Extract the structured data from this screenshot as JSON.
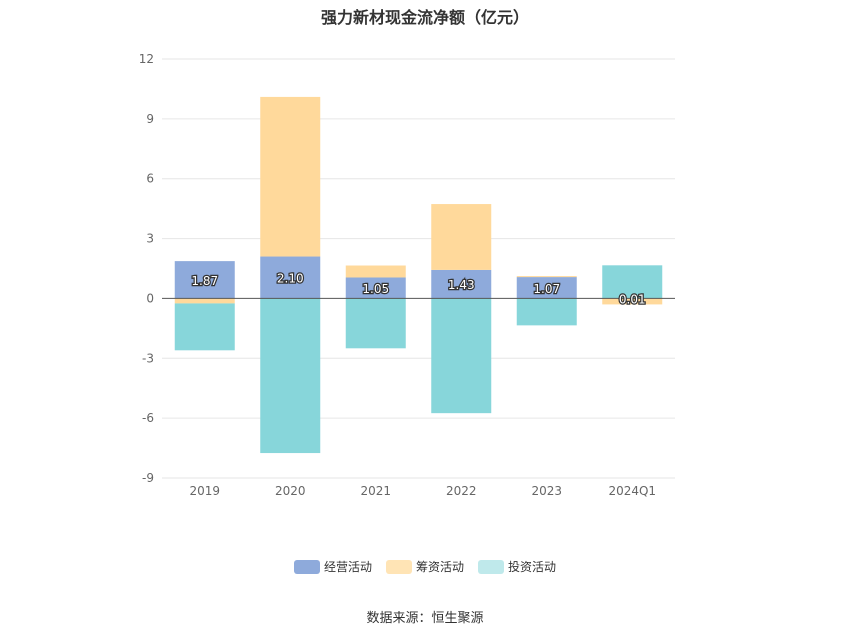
{
  "chart_data": {
    "type": "bar",
    "title": "强力新材现金流净额（亿元）",
    "categories": [
      "2019",
      "2020",
      "2021",
      "2022",
      "2023",
      "2024Q1"
    ],
    "ylim": [
      -9,
      12
    ],
    "yticks": [
      12,
      9,
      6,
      3,
      0,
      -3,
      -6,
      -9
    ],
    "stacked": true,
    "grid": true,
    "legend_position": "bottom",
    "series": [
      {
        "name": "经营活动",
        "color": "#8eaadb",
        "values": [
          1.87,
          2.1,
          1.05,
          1.43,
          1.07,
          0.01
        ],
        "labels": [
          "1.87",
          "2.10",
          "1.05",
          "1.43",
          "1.07",
          "0.01"
        ]
      },
      {
        "name": "筹资活动",
        "color": "#ffd99b",
        "values": [
          -0.25,
          8.0,
          0.6,
          3.3,
          0.05,
          -0.3
        ]
      },
      {
        "name": "投资活动",
        "color": "#87d6da",
        "values": [
          -2.35,
          -7.75,
          -2.5,
          -5.75,
          -1.35,
          1.65
        ]
      }
    ]
  },
  "legend": [
    {
      "label": "经营活动",
      "color": "#8eaadb"
    },
    {
      "label": "筹资活动",
      "color": "#ffe4b5"
    },
    {
      "label": "投资活动",
      "color": "#bfe9eb"
    }
  ],
  "source": "数据来源：恒生聚源"
}
